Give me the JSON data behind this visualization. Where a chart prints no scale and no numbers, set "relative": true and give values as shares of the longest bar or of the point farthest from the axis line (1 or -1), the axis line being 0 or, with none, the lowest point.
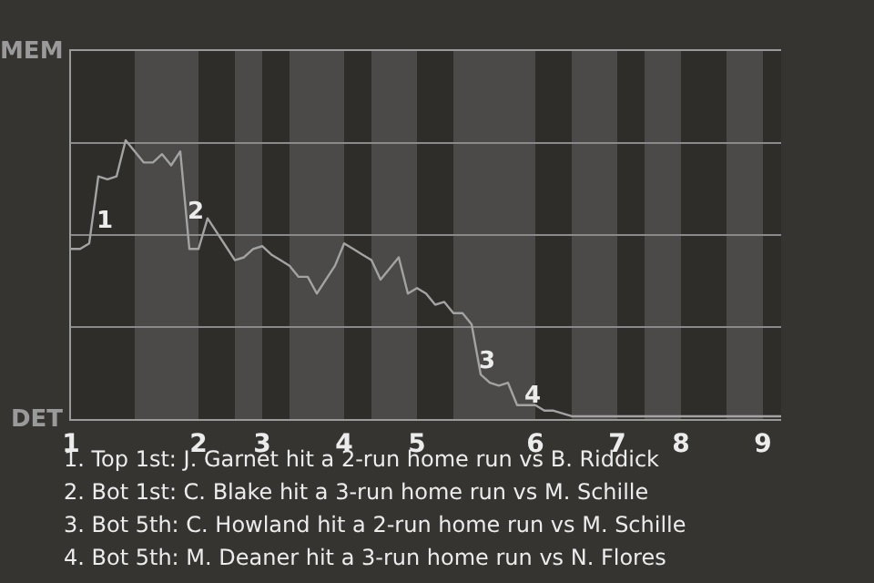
{
  "chart_data": {
    "type": "line",
    "relative": true,
    "categories": [
      "1",
      null,
      null,
      null,
      null,
      null,
      null,
      null,
      null,
      null,
      null,
      null,
      null,
      null,
      "2",
      null,
      null,
      null,
      null,
      null,
      null,
      "3",
      null,
      null,
      null,
      null,
      null,
      null,
      null,
      null,
      "4",
      null,
      null,
      null,
      null,
      null,
      null,
      null,
      "5",
      null,
      null,
      null,
      null,
      null,
      null,
      null,
      null,
      null,
      null,
      null,
      null,
      "6",
      null,
      null,
      null,
      null,
      null,
      null,
      null,
      null,
      "7",
      null,
      null,
      null,
      null,
      null,
      null,
      "8",
      null,
      null,
      null,
      null,
      null,
      null,
      null,
      null,
      "9",
      null,
      null
    ],
    "series": [
      {
        "color": "#a3a3a3",
        "values": [
          0.61,
          0.61,
          0.63,
          0.87,
          0.86,
          0.87,
          1,
          0.96,
          0.92,
          0.92,
          0.95,
          0.91,
          0.96,
          0.61,
          0.61,
          0.72,
          0.67,
          0.62,
          0.57,
          0.58,
          0.61,
          0.62,
          0.59,
          0.57,
          0.55,
          0.51,
          0.51,
          0.45,
          0.5,
          0.55,
          0.63,
          0.61,
          0.59,
          0.57,
          0.5,
          0.54,
          0.58,
          0.45,
          0.47,
          0.45,
          0.41,
          0.42,
          0.38,
          0.38,
          0.34,
          0.16,
          0.13,
          0.12,
          0.13,
          0.05,
          0.05,
          0.05,
          0.03,
          0.03,
          0.02,
          0.01,
          0.01,
          0.01,
          0.01,
          0.01,
          0.01,
          0.01,
          0.01,
          0.01,
          0.01,
          0.01,
          0.01,
          0.01,
          0.01,
          0.01,
          0.01,
          0.01,
          0.01,
          0.01,
          0.01,
          0.01,
          0.01,
          0.01,
          0.01
        ]
      }
    ],
    "marker": "none",
    "line_style": "solid",
    "ref_lines": [
      {
        "axis": "y",
        "value": 0.33,
        "color": "#8a8a8a"
      },
      {
        "axis": "y",
        "value": 0.66,
        "color": "#8a8a8a"
      },
      {
        "axis": "y",
        "value": 0.99,
        "color": "#8a8a8a"
      }
    ],
    "annotations": [
      "MEM",
      "DET",
      "1",
      "2",
      "3",
      "4",
      "1. Top 1st: J. Garnet hit a 2-run home run vs B. Riddick",
      "2. Bot 1st: C. Blake hit a 3-run home run vs M. Schille",
      "3. Bot 5th: C. Howland hit a 2-run home run vs M. Schille",
      "4. Bot 5th: M. Deaner hit a 3-run home run vs N. Flores"
    ]
  }
}
